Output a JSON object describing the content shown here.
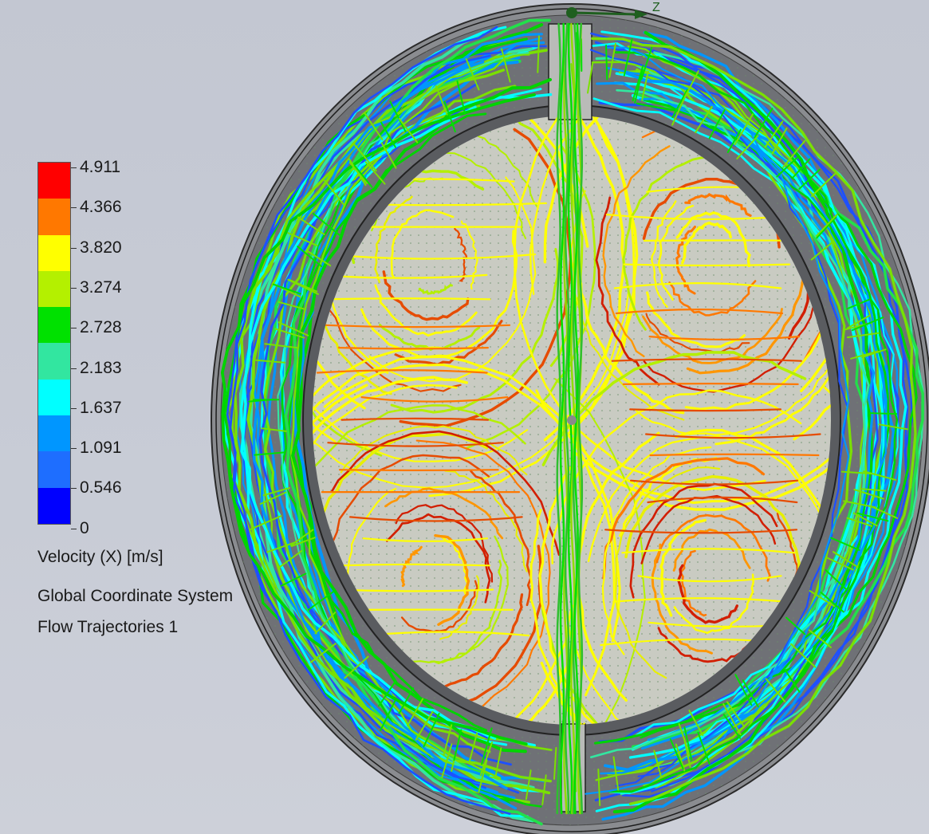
{
  "legend": {
    "ticks": [
      "4.911",
      "4.366",
      "3.820",
      "3.274",
      "2.728",
      "2.183",
      "1.637",
      "1.091",
      "0.546",
      "0"
    ],
    "bands": [
      "#ff0000",
      "#ff7800",
      "#ffff00",
      "#b4f000",
      "#00e100",
      "#32e6a0",
      "#00ffff",
      "#0096ff",
      "#1e6eff",
      "#0000ff"
    ],
    "parameter": "Velocity (X) [m/s]",
    "coordinate_system": "Global Coordinate System",
    "plot_name": "Flow Trajectories 1"
  },
  "view": {
    "triad_axis": "Z"
  }
}
